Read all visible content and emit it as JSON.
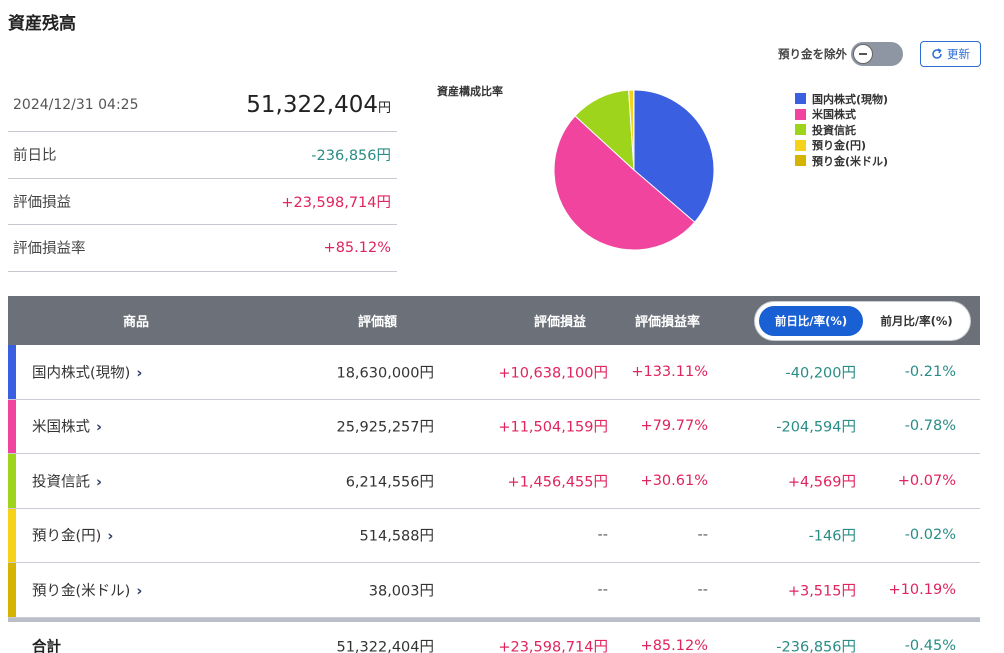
{
  "page": {
    "title": "資産残高"
  },
  "summary": {
    "datetime": "2024/12/31 04:25",
    "total_value": "51,322,404",
    "total_unit": "円",
    "rows": [
      {
        "label": "前日比",
        "value": "-236,856円",
        "sign": "neg"
      },
      {
        "label": "評価損益",
        "value": "+23,598,714円",
        "sign": "pos"
      },
      {
        "label": "評価損益率",
        "value": "+85.12%",
        "sign": "pos"
      }
    ]
  },
  "controls": {
    "toggle_label": "預り金を除外",
    "refresh_label": "更新"
  },
  "chart_data": {
    "type": "pie",
    "title": "資産構成比率",
    "legend_position": "right",
    "categories": [
      "国内株式(現物)",
      "米国株式",
      "投資信託",
      "預り金(円)",
      "預り金(米ドル)"
    ],
    "values": [
      18630000,
      25925257,
      6214556,
      514588,
      38003
    ],
    "colors": [
      "#3a5fe0",
      "#f0449e",
      "#9ed41c",
      "#f7d21a",
      "#d4b400"
    ]
  },
  "table": {
    "headers": {
      "name": "商品",
      "value": "評価額",
      "pl": "評価損益",
      "pl_rate": "評価損益率"
    },
    "segment": {
      "active": "前日比/率(%)",
      "inactive": "前月比/率(%)"
    },
    "rows": [
      {
        "name": "国内株式(現物)",
        "value": "18,630,000円",
        "pl": "+10,638,100円",
        "pl_rate": "+133.11%",
        "day_value": "-40,200円",
        "day_rate": "-0.21%",
        "pl_sign": "pos",
        "day_sign": "neg",
        "color": "#3a5fe0"
      },
      {
        "name": "米国株式",
        "value": "25,925,257円",
        "pl": "+11,504,159円",
        "pl_rate": "+79.77%",
        "day_value": "-204,594円",
        "day_rate": "-0.78%",
        "pl_sign": "pos",
        "day_sign": "neg",
        "color": "#f0449e"
      },
      {
        "name": "投資信託",
        "value": "6,214,556円",
        "pl": "+1,456,455円",
        "pl_rate": "+30.61%",
        "day_value": "+4,569円",
        "day_rate": "+0.07%",
        "pl_sign": "pos",
        "day_sign": "pos",
        "color": "#9ed41c"
      },
      {
        "name": "預り金(円)",
        "value": "514,588円",
        "pl": "--",
        "pl_rate": "--",
        "day_value": "-146円",
        "day_rate": "-0.02%",
        "pl_sign": "muted",
        "day_sign": "neg",
        "color": "#f7d21a"
      },
      {
        "name": "預り金(米ドル)",
        "value": "38,003円",
        "pl": "--",
        "pl_rate": "--",
        "day_value": "+3,515円",
        "day_rate": "+10.19%",
        "pl_sign": "muted",
        "day_sign": "pos",
        "color": "#d4b400"
      }
    ],
    "total": {
      "name": "合計",
      "value": "51,322,404円",
      "pl": "+23,598,714円",
      "pl_rate": "+85.12%",
      "day_value": "-236,856円",
      "day_rate": "-0.45%"
    }
  }
}
